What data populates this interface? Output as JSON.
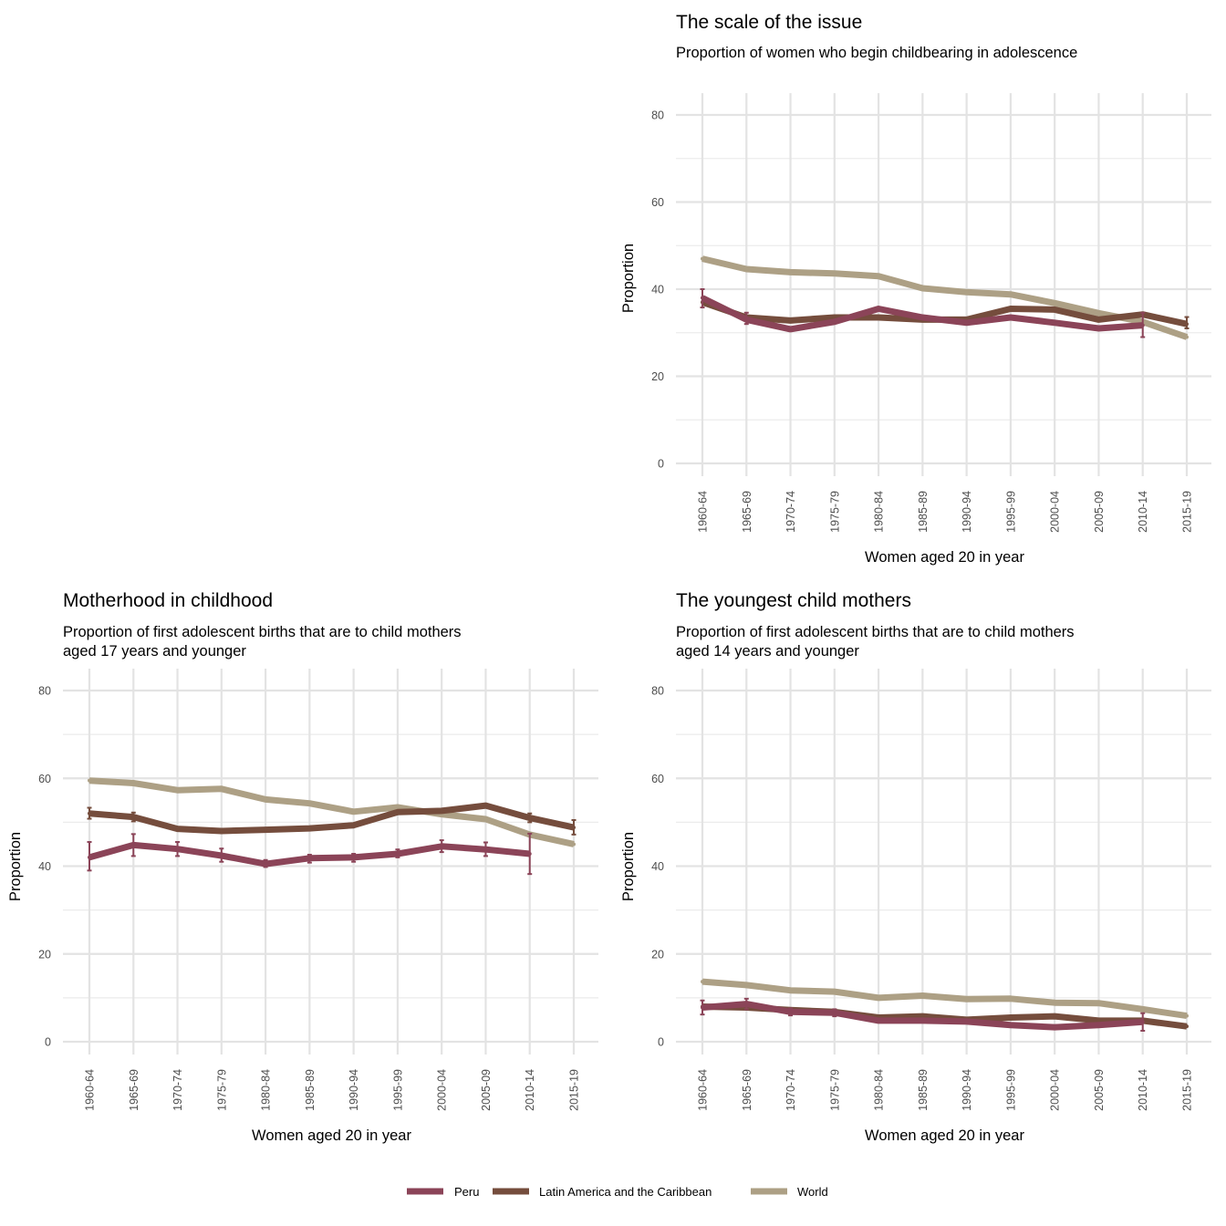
{
  "chart_data": [
    {
      "type": "line",
      "id": "scale",
      "title": "The scale of the issue",
      "subtitle": [
        "Proportion of women who begin childbearing in adolescence"
      ],
      "xlabel": "Women aged 20 in year",
      "ylabel": "Proportion",
      "ylim": [
        0,
        85
      ],
      "yticks": [
        0,
        20,
        40,
        60,
        80
      ],
      "grid": true,
      "categories": [
        "1960-64",
        "1965-69",
        "1970-74",
        "1975-79",
        "1980-84",
        "1985-89",
        "1990-94",
        "1995-99",
        "2000-04",
        "2005-09",
        "2010-14",
        "2015-19"
      ],
      "series": [
        {
          "name": "Peru",
          "color": "#8b4458",
          "values": [
            38,
            33,
            30.8,
            32.5,
            35.5,
            33.5,
            32.3,
            33.5,
            32.3,
            31,
            31.7,
            null
          ],
          "errors": [
            [
              35.8,
              40
            ],
            [
              32,
              34.6
            ],
            null,
            null,
            null,
            null,
            null,
            null,
            null,
            null,
            [
              29,
              34.6
            ],
            null
          ]
        },
        {
          "name": "Latin America and the Caribbean",
          "color": "#754d3d",
          "values": [
            37,
            33.5,
            32.8,
            33.5,
            33.5,
            33,
            33,
            35.5,
            35.3,
            33,
            34.2,
            32
          ],
          "errors": [
            null,
            null,
            null,
            null,
            null,
            null,
            null,
            null,
            null,
            null,
            null,
            [
              31,
              33.6
            ]
          ]
        },
        {
          "name": "World",
          "color": "#ada085",
          "values": [
            47,
            44.6,
            43.9,
            43.6,
            43,
            40.2,
            39.3,
            38.8,
            36.8,
            34.5,
            32.5,
            29
          ]
        }
      ]
    },
    {
      "type": "line",
      "id": "childhood",
      "title": "Motherhood in childhood",
      "subtitle": [
        "Proportion of first adolescent births that are to child mothers",
        "aged 17 years and younger"
      ],
      "xlabel": "Women aged 20 in year",
      "ylabel": "Proportion",
      "ylim": [
        0,
        85
      ],
      "yticks": [
        0,
        20,
        40,
        60,
        80
      ],
      "grid": true,
      "categories": [
        "1960-64",
        "1965-69",
        "1970-74",
        "1975-79",
        "1980-84",
        "1985-89",
        "1990-94",
        "1995-99",
        "2000-04",
        "2005-09",
        "2010-14",
        "2015-19"
      ],
      "series": [
        {
          "name": "Peru",
          "color": "#8b4458",
          "values": [
            42,
            44.8,
            43.9,
            42.4,
            40.5,
            41.8,
            42,
            42.8,
            44.5,
            43.8,
            42.8,
            null
          ],
          "errors": [
            [
              39,
              45.5
            ],
            [
              42.3,
              47.3
            ],
            [
              42.3,
              45.5
            ],
            [
              41,
              44
            ],
            [
              39.8,
              41.4
            ],
            [
              40.8,
              42.6
            ],
            [
              41,
              42.8
            ],
            [
              42,
              43.8
            ],
            [
              43.2,
              45.9
            ],
            [
              42.3,
              45.4
            ],
            [
              38.2,
              47.4
            ],
            null
          ]
        },
        {
          "name": "Latin America and the Caribbean",
          "color": "#754d3d",
          "values": [
            52,
            51.2,
            48.5,
            48,
            48.3,
            48.6,
            49.3,
            52.3,
            52.6,
            53.8,
            51,
            48.8
          ],
          "errors": [
            [
              50.8,
              53.3
            ],
            [
              50.2,
              52.2
            ],
            null,
            null,
            null,
            null,
            null,
            null,
            null,
            null,
            [
              50,
              52
            ],
            [
              47.2,
              50.5
            ]
          ]
        },
        {
          "name": "World",
          "color": "#ada085",
          "values": [
            59.5,
            58.9,
            57.3,
            57.6,
            55.2,
            54.3,
            52.4,
            53.4,
            51.8,
            50.7,
            47.2,
            45
          ]
        }
      ]
    },
    {
      "type": "line",
      "id": "youngest",
      "title": "The youngest child mothers",
      "subtitle": [
        "Proportion of first adolescent births that are to child mothers",
        "aged 14 years and younger"
      ],
      "xlabel": "Women aged 20 in year",
      "ylabel": "Proportion",
      "ylim": [
        0,
        85
      ],
      "yticks": [
        0,
        20,
        40,
        60,
        80
      ],
      "grid": true,
      "categories": [
        "1960-64",
        "1965-69",
        "1970-74",
        "1975-79",
        "1980-84",
        "1985-89",
        "1990-94",
        "1995-99",
        "2000-04",
        "2005-09",
        "2010-14",
        "2015-19"
      ],
      "series": [
        {
          "name": "Peru",
          "color": "#8b4458",
          "values": [
            7.8,
            8.6,
            6.8,
            6.6,
            4.8,
            4.8,
            4.6,
            3.8,
            3.3,
            3.8,
            4.5,
            null
          ],
          "errors": [
            [
              6.2,
              9.4
            ],
            [
              7.4,
              9.8
            ],
            [
              6,
              7.6
            ],
            [
              5.8,
              7.4
            ],
            null,
            null,
            null,
            null,
            null,
            null,
            [
              2.5,
              6.5
            ],
            null
          ]
        },
        {
          "name": "Latin America and the Caribbean",
          "color": "#754d3d",
          "values": [
            8,
            7.8,
            7.2,
            6.8,
            5.5,
            5.8,
            5,
            5.5,
            5.8,
            4.8,
            4.8,
            3.5
          ],
          "errors": [
            null,
            null,
            null,
            null,
            null,
            null,
            null,
            null,
            null,
            null,
            null,
            null
          ]
        },
        {
          "name": "World",
          "color": "#ada085",
          "values": [
            13.7,
            12.9,
            11.7,
            11.4,
            10,
            10.5,
            9.7,
            9.8,
            8.9,
            8.8,
            7.4,
            5.9
          ]
        }
      ]
    }
  ],
  "legend": {
    "placement": "bottom",
    "items": [
      {
        "label": "Peru",
        "color": "#8b4458"
      },
      {
        "label": "Latin America and the Caribbean",
        "color": "#754d3d"
      },
      {
        "label": "World",
        "color": "#ada085"
      }
    ]
  }
}
